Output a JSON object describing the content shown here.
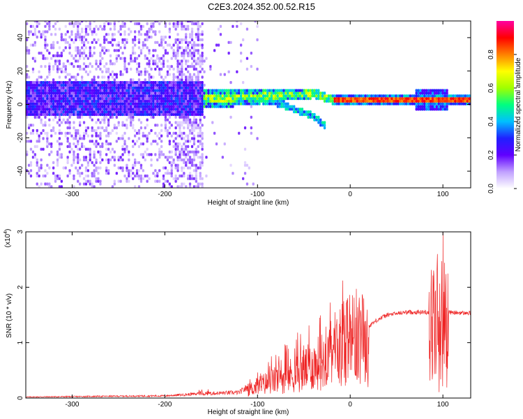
{
  "title": "C2E3.2024.352.00.52.R15",
  "chart_data": [
    {
      "type": "heatmap",
      "xlabel": "Height of straight line (km)",
      "ylabel": "Frequency (Hz)",
      "xlim": [
        -350,
        130
      ],
      "ylim": [
        -50,
        50
      ],
      "xticks": [
        -300,
        -200,
        -100,
        0,
        100
      ],
      "yticks": [
        -40,
        -20,
        0,
        20,
        40
      ],
      "colorbar": {
        "label": "Normalized spectral amplitude",
        "range": [
          0.0,
          1.0
        ],
        "ticks": [
          "0.0",
          "0.2",
          "0.4",
          "0.6",
          "0.8"
        ],
        "colors": [
          "#ffffff",
          "#c0a0ff",
          "#6000ff",
          "#2020ff",
          "#00c0ff",
          "#00ff80",
          "#a0ff00",
          "#ffff00",
          "#ff8000",
          "#ff0000",
          "#ff00a0"
        ]
      },
      "center_line": [
        {
          "x": -160,
          "y": 3
        },
        {
          "x": -130,
          "y": 3
        },
        {
          "x": -100,
          "y": 4
        },
        {
          "x": -70,
          "y": 5
        },
        {
          "x": -40,
          "y": 6
        },
        {
          "x": -20,
          "y": 2
        },
        {
          "x": 0,
          "y": 2
        },
        {
          "x": 40,
          "y": 2
        },
        {
          "x": 80,
          "y": 2
        },
        {
          "x": 130,
          "y": 2
        }
      ],
      "descending_branch": [
        {
          "x": -110,
          "y": 3
        },
        {
          "x": -80,
          "y": 0
        },
        {
          "x": -60,
          "y": -4
        },
        {
          "x": -40,
          "y": -8
        },
        {
          "x": -28,
          "y": -14
        }
      ]
    },
    {
      "type": "line",
      "xlabel": "Height of straight line (km)",
      "ylabel": "SNR (10 * v/v)",
      "y_multiplier": "(x10^4)",
      "multiplier_base": "(x10",
      "multiplier_exp": "4",
      "multiplier_close": ")",
      "xlim": [
        -350,
        130
      ],
      "ylim": [
        0,
        3
      ],
      "xticks": [
        -300,
        -200,
        -100,
        0,
        100
      ],
      "yticks": [
        0,
        1,
        2,
        3
      ],
      "line_color": "#ee2222",
      "envelope": [
        {
          "x": -350,
          "y": 0.02
        },
        {
          "x": -200,
          "y": 0.04
        },
        {
          "x": -160,
          "y": 0.08
        },
        {
          "x": -120,
          "y": 0.1
        },
        {
          "x": -100,
          "y": 0.3
        },
        {
          "x": -80,
          "y": 0.45
        },
        {
          "x": -60,
          "y": 0.6
        },
        {
          "x": -40,
          "y": 0.8
        },
        {
          "x": -25,
          "y": 1.0
        },
        {
          "x": -10,
          "y": 1.0
        },
        {
          "x": 0,
          "y": 1.05
        },
        {
          "x": 10,
          "y": 1.15
        },
        {
          "x": 20,
          "y": 1.3
        },
        {
          "x": 30,
          "y": 1.42
        },
        {
          "x": 40,
          "y": 1.5
        },
        {
          "x": 60,
          "y": 1.55
        },
        {
          "x": 80,
          "y": 1.55
        },
        {
          "x": 100,
          "y": 1.55
        },
        {
          "x": 130,
          "y": 1.53
        }
      ],
      "spikes": [
        {
          "x": -8,
          "y": 2.12
        },
        {
          "x": 13,
          "y": 1.87
        },
        {
          "x": -33,
          "y": 1.45
        },
        {
          "x": -50,
          "y": 0.95
        },
        {
          "x": 94,
          "y": 2.6
        },
        {
          "x": 100,
          "y": 3.0
        },
        {
          "x": 103,
          "y": 2.0
        }
      ]
    }
  ]
}
